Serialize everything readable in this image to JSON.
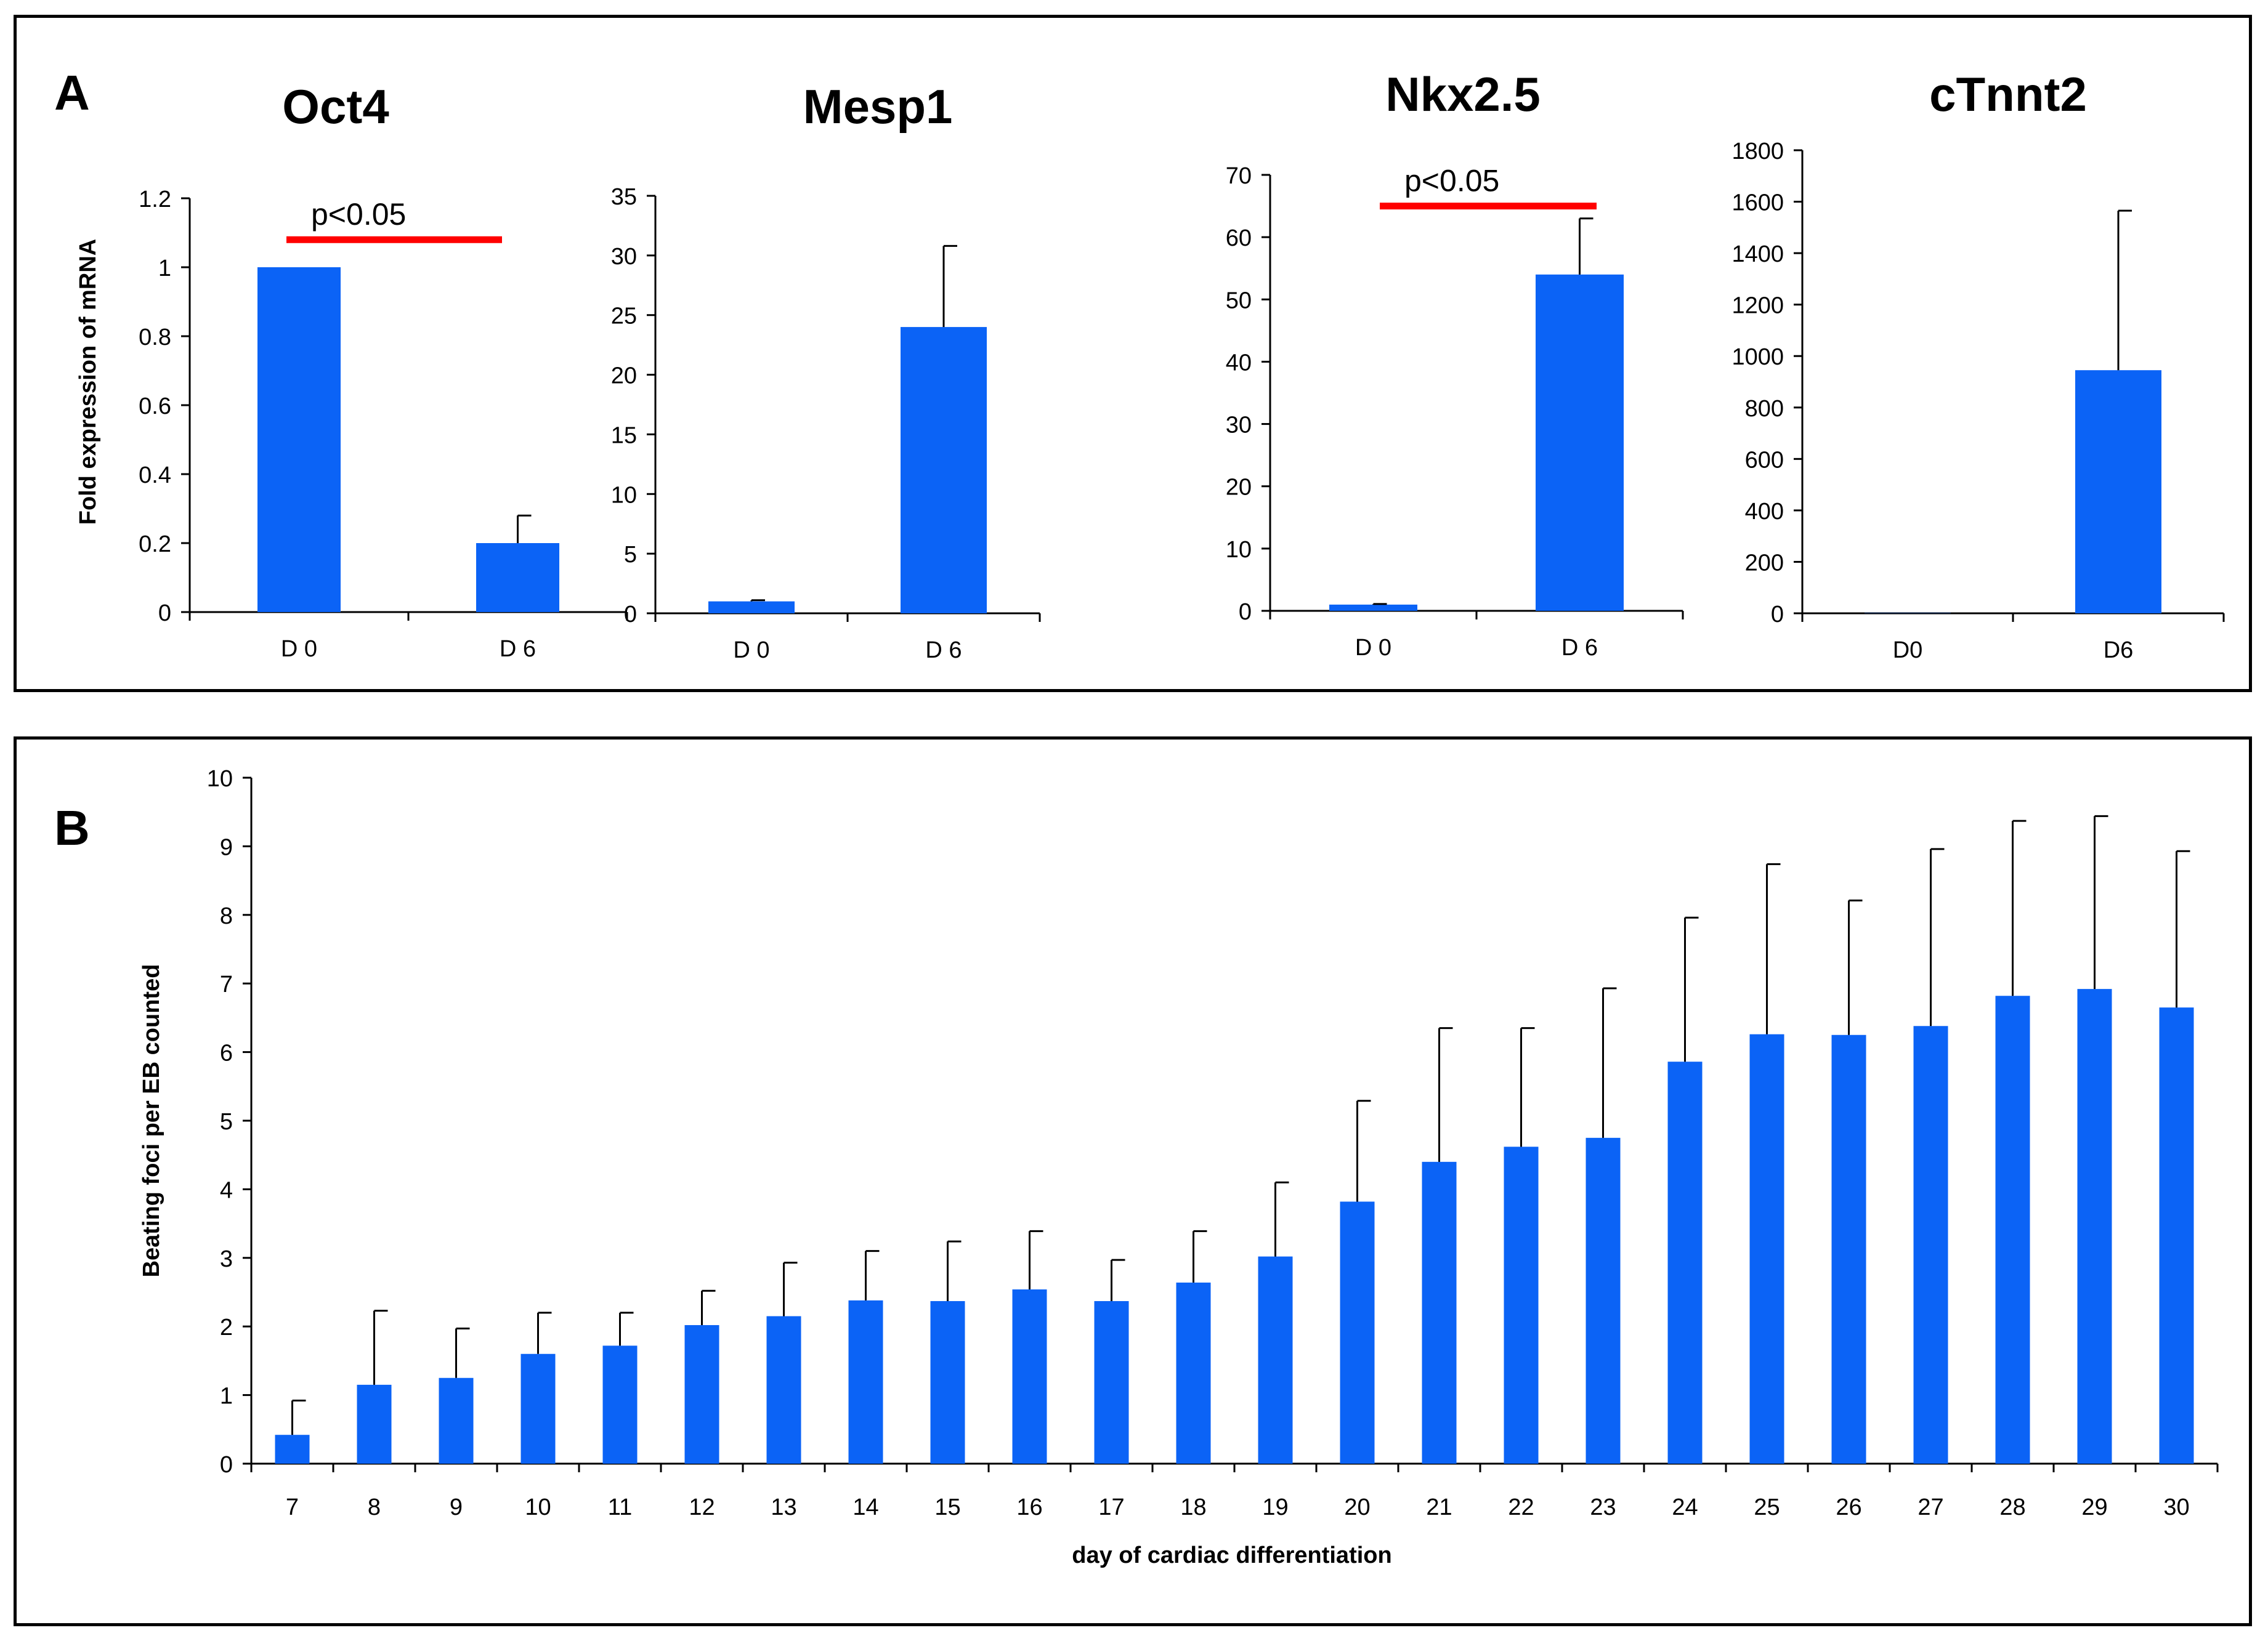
{
  "figure": {
    "panel_a_label": "A",
    "panel_b_label": "B"
  },
  "colors": {
    "bar": "#0B63F6",
    "significance": "#FF0000",
    "axis": "#000000"
  },
  "chart_data": [
    {
      "id": "oct4",
      "type": "bar",
      "title": "Oct4",
      "ylabel": "Fold expression of mRNA",
      "xlabel": "",
      "categories": [
        "D 0",
        "D 6"
      ],
      "values": [
        1.0,
        0.2
      ],
      "errors": [
        0.0,
        0.08
      ],
      "yticks": [
        "0",
        "0.2",
        "0.4",
        "0.6",
        "0.8",
        "1",
        "1.2"
      ],
      "ylim": [
        0,
        1.2
      ],
      "significance": {
        "label": "p<0.05",
        "y": 1.08
      }
    },
    {
      "id": "mesp1",
      "type": "bar",
      "title": "Mesp1",
      "ylabel": "",
      "xlabel": "",
      "categories": [
        "D 0",
        "D 6"
      ],
      "values": [
        1.0,
        24.0
      ],
      "errors": [
        0.1,
        6.8
      ],
      "yticks": [
        "0",
        "5",
        "10",
        "15",
        "20",
        "25",
        "30",
        "35"
      ],
      "ylim": [
        0,
        35
      ]
    },
    {
      "id": "nkx25",
      "type": "bar",
      "title": "Nkx2.5",
      "ylabel": "",
      "xlabel": "",
      "categories": [
        "D 0",
        "D 6"
      ],
      "values": [
        1.0,
        54.0
      ],
      "errors": [
        0.1,
        9.0
      ],
      "yticks": [
        "0",
        "10",
        "20",
        "30",
        "40",
        "50",
        "60",
        "70"
      ],
      "ylim": [
        0,
        70
      ],
      "significance": {
        "label": "p<0.05",
        "y": 65
      }
    },
    {
      "id": "ctnnt2",
      "type": "bar",
      "title": "cTnnt2",
      "ylabel": "",
      "xlabel": "",
      "categories": [
        "D0",
        "D6"
      ],
      "values": [
        1,
        945
      ],
      "errors": [
        0,
        620
      ],
      "yticks": [
        "0",
        "200",
        "400",
        "600",
        "800",
        "1000",
        "1200",
        "1400",
        "1600",
        "1800"
      ],
      "ylim": [
        0,
        1800
      ]
    },
    {
      "id": "beating",
      "type": "bar",
      "title": "",
      "ylabel": "Beating foci per EB counted",
      "xlabel": "day of cardiac differentiation",
      "categories": [
        "7",
        "8",
        "9",
        "10",
        "11",
        "12",
        "13",
        "14",
        "15",
        "16",
        "17",
        "18",
        "19",
        "20",
        "21",
        "22",
        "23",
        "24",
        "25",
        "26",
        "27",
        "28",
        "29",
        "30"
      ],
      "values": [
        0.42,
        1.15,
        1.25,
        1.6,
        1.72,
        2.02,
        2.15,
        2.38,
        2.37,
        2.54,
        2.37,
        2.64,
        3.02,
        3.82,
        4.4,
        4.62,
        4.75,
        5.86,
        6.26,
        6.25,
        6.38,
        6.82,
        6.92,
        6.65
      ],
      "errors": [
        0.5,
        1.08,
        0.72,
        0.6,
        0.48,
        0.5,
        0.78,
        0.72,
        0.87,
        0.85,
        0.6,
        0.75,
        1.08,
        1.47,
        1.95,
        1.73,
        2.18,
        2.1,
        2.48,
        1.96,
        2.58,
        2.55,
        2.52,
        2.28
      ],
      "yticks": [
        "0",
        "1",
        "2",
        "3",
        "4",
        "5",
        "6",
        "7",
        "8",
        "9",
        "10"
      ],
      "ylim": [
        0,
        10
      ]
    }
  ]
}
